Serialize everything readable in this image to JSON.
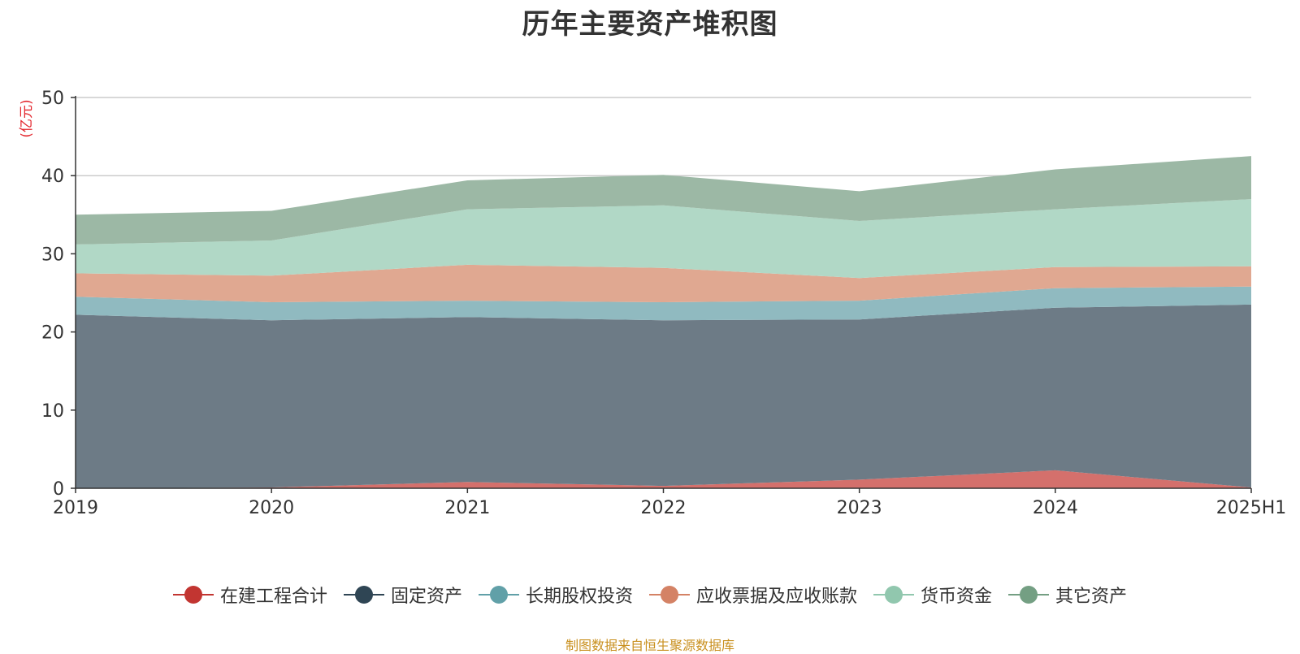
{
  "chart_data": {
    "type": "area",
    "stacked": true,
    "title": "历年主要资产堆积图",
    "ylabel": "(亿元)",
    "xlabel": "",
    "categories": [
      "2019",
      "2020",
      "2021",
      "2022",
      "2023",
      "2024",
      "2025H1"
    ],
    "ylim": [
      0,
      50
    ],
    "yticks": [
      0,
      10,
      20,
      30,
      40,
      50
    ],
    "grid": true,
    "legend_position": "bottom",
    "series": [
      {
        "name": "在建工程合计",
        "color": "#c23531",
        "fill": "#d4706c",
        "values": [
          0.0,
          0.1,
          0.8,
          0.3,
          1.1,
          2.3,
          0.1
        ]
      },
      {
        "name": "固定资产",
        "color": "#2f4554",
        "fill": "#6d7b86",
        "values": [
          22.2,
          21.4,
          21.1,
          21.2,
          20.5,
          20.8,
          23.4
        ]
      },
      {
        "name": "长期股权投资",
        "color": "#61a0a8",
        "fill": "#90bac0",
        "values": [
          2.3,
          2.3,
          2.1,
          2.3,
          2.4,
          2.5,
          2.3
        ]
      },
      {
        "name": "应收票据及应收账款",
        "color": "#d48265",
        "fill": "#e0a891",
        "values": [
          3.0,
          3.4,
          4.6,
          4.4,
          2.9,
          2.7,
          2.6
        ]
      },
      {
        "name": "货币资金",
        "color": "#91c7ae",
        "fill": "#b1d8c6",
        "values": [
          3.7,
          4.5,
          7.1,
          8.0,
          7.3,
          7.4,
          8.6
        ]
      },
      {
        "name": "其它资产",
        "color": "#749f83",
        "fill": "#9cb8a5",
        "values": [
          3.8,
          3.8,
          3.7,
          3.9,
          3.8,
          5.1,
          5.5
        ]
      }
    ]
  },
  "source_note": "制图数据来自恒生聚源数据库"
}
